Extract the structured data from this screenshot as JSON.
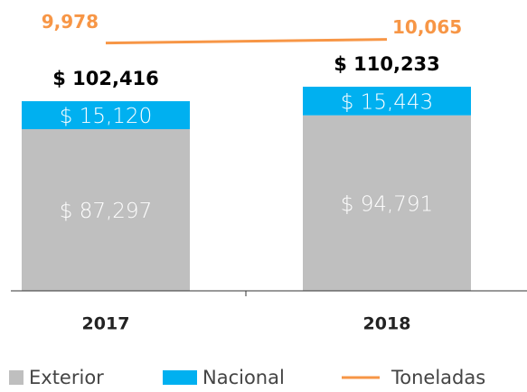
{
  "chart_data": {
    "type": "bar",
    "categories": [
      "2017",
      "2018"
    ],
    "series": [
      {
        "name": "Exterior",
        "color": "#bfbfbf",
        "values": [
          87297,
          94791
        ],
        "value_labels": [
          "$ 87,297",
          "$ 94,791"
        ]
      },
      {
        "name": "Nacional",
        "color": "#00b0f0",
        "values": [
          15120,
          15443
        ],
        "value_labels": [
          "$ 15,120",
          "$ 15,443"
        ]
      },
      {
        "name": "Toneladas",
        "color": "#f79646",
        "type": "line",
        "axis": "y2",
        "values": [
          9978,
          10065
        ],
        "value_labels": [
          "9,978",
          "10,065"
        ]
      }
    ],
    "totals": [
      102416,
      110233
    ],
    "total_labels": [
      "$ 102,416",
      "$ 110,233"
    ],
    "ylim": [
      0,
      150000
    ],
    "y2lim": [
      4000,
      10700
    ],
    "stacked": true,
    "legend": "bottom"
  }
}
